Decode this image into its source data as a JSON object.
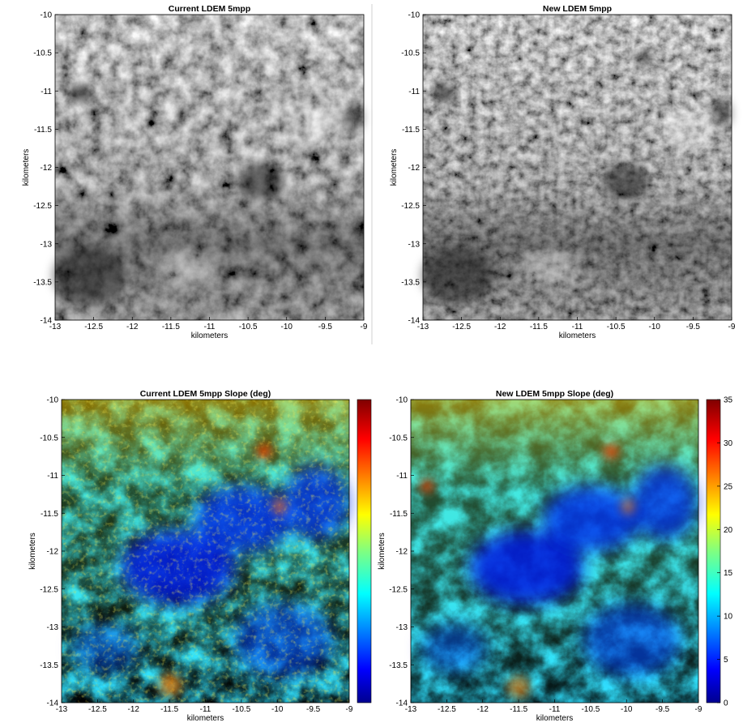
{
  "chart_data": [
    {
      "type": "heatmap",
      "title": "Current LDEM 5mpp",
      "xlabel": "kilometers",
      "ylabel": "kilometers",
      "xlim": [
        -13,
        -9
      ],
      "ylim": [
        -14,
        -10
      ],
      "x_ticks": [
        "-13",
        "-12.5",
        "-12",
        "-11.5",
        "-11",
        "-10.5",
        "-10",
        "-9.5",
        "-9"
      ],
      "y_ticks": [
        "-10",
        "-10.5",
        "-11",
        "-11.5",
        "-12",
        "-12.5",
        "-13",
        "-13.5",
        "-14"
      ],
      "colormap": "gray",
      "colorbar": false
    },
    {
      "type": "heatmap",
      "title": "New LDEM 5mpp",
      "xlabel": "kilometers",
      "ylabel": "kilometers",
      "xlim": [
        -13,
        -9
      ],
      "ylim": [
        -14,
        -10
      ],
      "x_ticks": [
        "-13",
        "-12.5",
        "-12",
        "-11.5",
        "-11",
        "-10.5",
        "-10",
        "-9.5",
        "-9"
      ],
      "y_ticks": [
        "-10",
        "-10.5",
        "-11",
        "-11.5",
        "-12",
        "-12.5",
        "-13",
        "-13.5",
        "-14"
      ],
      "colormap": "gray",
      "colorbar": false
    },
    {
      "type": "heatmap",
      "title": "Current LDEM 5mpp Slope (deg)",
      "xlabel": "kilometers",
      "ylabel": "kilometers",
      "xlim": [
        -13,
        -9
      ],
      "ylim": [
        -14,
        -10
      ],
      "x_ticks": [
        "-13",
        "-12.5",
        "-12",
        "-11.5",
        "-11",
        "-10.5",
        "-10",
        "-9.5",
        "-9"
      ],
      "y_ticks": [
        "-10",
        "-10.5",
        "-11",
        "-11.5",
        "-12",
        "-12.5",
        "-13",
        "-13.5",
        "-14"
      ],
      "colormap": "jet",
      "colorbar": true
    },
    {
      "type": "heatmap",
      "title": "New LDEM 5mpp Slope (deg)",
      "xlabel": "kilometers",
      "ylabel": "kilometers",
      "xlim": [
        -13,
        -9
      ],
      "ylim": [
        -14,
        -10
      ],
      "x_ticks": [
        "-13",
        "-12.5",
        "-12",
        "-11.5",
        "-11",
        "-10.5",
        "-10",
        "-9.5",
        "-9"
      ],
      "y_ticks": [
        "-10",
        "-10.5",
        "-11",
        "-11.5",
        "-12",
        "-12.5",
        "-13",
        "-13.5",
        "-14"
      ],
      "colormap": "jet",
      "colorbar": true,
      "colorbar_range": [
        0,
        35
      ],
      "colorbar_ticks": [
        "0",
        "5",
        "10",
        "15",
        "20",
        "25",
        "30",
        "35"
      ]
    }
  ]
}
